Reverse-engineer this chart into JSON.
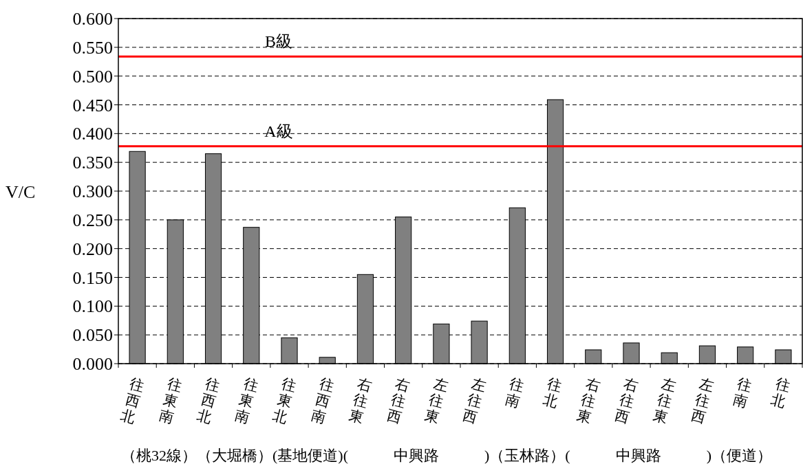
{
  "chart_data": {
    "type": "bar",
    "categories": [
      "往西北",
      "往東南",
      "往西北",
      "往東南",
      "往東北",
      "往西南",
      "右往東",
      "右往西",
      "左往東",
      "左往西",
      "往南",
      "往北",
      "右往東",
      "右往西",
      "左往東",
      "左往西",
      "往南",
      "往北"
    ],
    "values": [
      0.369,
      0.25,
      0.365,
      0.237,
      0.045,
      0.011,
      0.155,
      0.255,
      0.069,
      0.074,
      0.271,
      0.459,
      0.024,
      0.036,
      0.019,
      0.031,
      0.029,
      0.024
    ],
    "color": "#808080",
    "ylabel": "V/C",
    "xlabel": "（桃32線）（大堀橋）(基地便道)(　　　中興路　　　)（玉林路）(　　　中興路　　　)（便道）",
    "ylim": [
      0,
      0.6
    ],
    "yticks": [
      {
        "value": 0,
        "label": "0.000"
      },
      {
        "value": 0.05,
        "label": "0.050"
      },
      {
        "value": 0.1,
        "label": "0.100"
      },
      {
        "value": 0.15,
        "label": "0.150"
      },
      {
        "value": 0.2,
        "label": "0.200"
      },
      {
        "value": 0.25,
        "label": "0.250"
      },
      {
        "value": 0.3,
        "label": "0.300"
      },
      {
        "value": 0.35,
        "label": "0.350"
      },
      {
        "value": 0.4,
        "label": "0.400"
      },
      {
        "value": 0.45,
        "label": "0.450"
      },
      {
        "value": 0.5,
        "label": "0.500"
      },
      {
        "value": 0.55,
        "label": "0.550"
      },
      {
        "value": 0.6,
        "label": "0.600"
      }
    ],
    "grid": "y",
    "ref_lines": [
      {
        "axis": "y",
        "value": 0.534,
        "label": "B級",
        "color": "#ff0000"
      },
      {
        "axis": "y",
        "value": 0.378,
        "label": "A級",
        "color": "#ff0000"
      }
    ]
  }
}
